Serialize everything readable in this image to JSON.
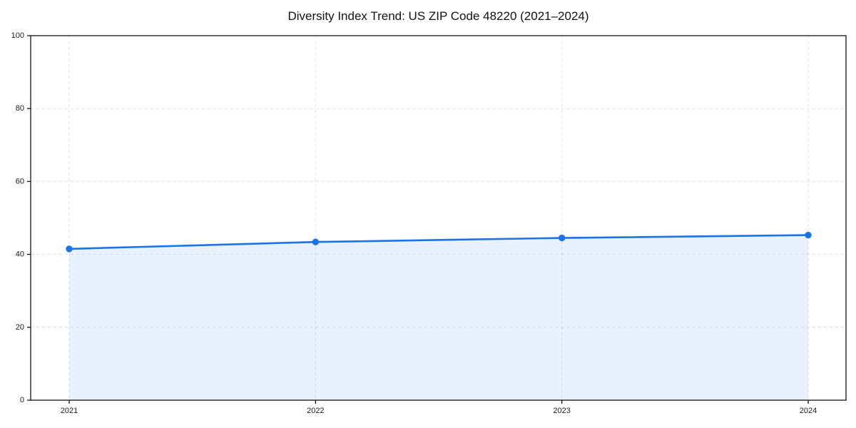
{
  "chart_data": {
    "type": "area",
    "title": "Diversity Index Trend: US ZIP Code 48220 (2021–2024)",
    "categories": [
      "2021",
      "2022",
      "2023",
      "2024"
    ],
    "series": [
      {
        "name": "Diversity Index",
        "values": [
          41.5,
          43.4,
          44.5,
          45.3
        ]
      }
    ],
    "xlabel": "",
    "ylabel": "",
    "ylim": [
      0,
      100
    ],
    "yticks": [
      0,
      20,
      40,
      60,
      80,
      100
    ],
    "grid": true,
    "grid_style": "dashed",
    "legend": false,
    "colors": {
      "line": "#1a73e8",
      "marker": "#1a73e8",
      "fill": "#1a73e8",
      "fill_opacity": "0.1",
      "grid": "#dedede",
      "axis": "#000000",
      "tick_label": "#1a1a1a",
      "background": "#ffffff"
    }
  }
}
